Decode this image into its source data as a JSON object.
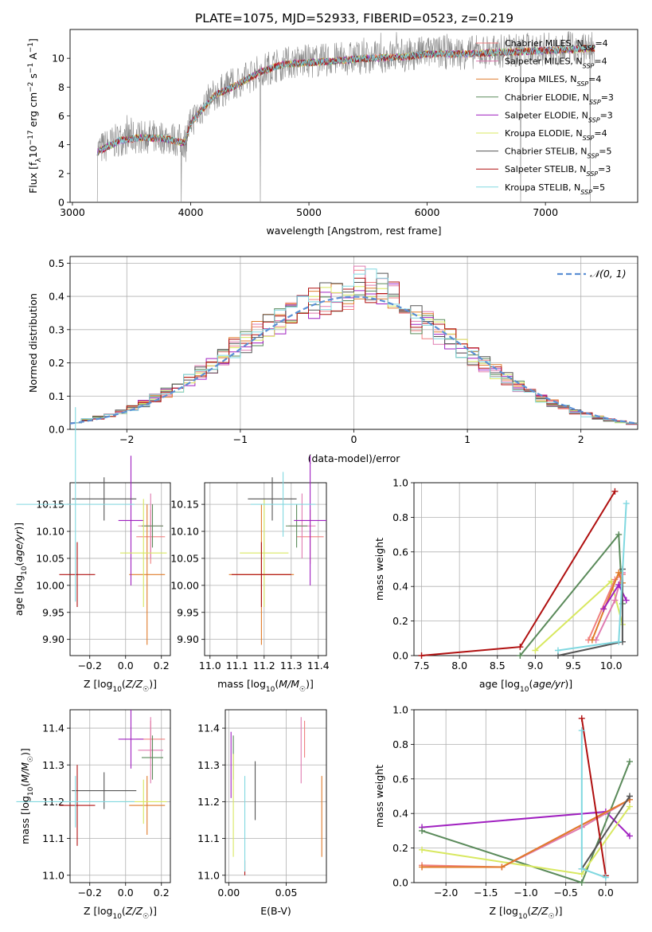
{
  "title": "PLATE=1075, MJD=52933, FIBERID=0523, z=0.219",
  "colors": {
    "chabrier_miles": "#f08080",
    "salpeter_miles": "#e07bb0",
    "kroupa_miles": "#e07b2a",
    "chabrier_elodie": "#5a8a5a",
    "salpeter_elodie": "#a020c0",
    "kroupa_elodie": "#d8e860",
    "chabrier_stelib": "#555555",
    "salpeter_stelib": "#b01010",
    "kroupa_stelib": "#80d8e0",
    "data": "#888888",
    "gaussian": "#5b8fd4"
  },
  "models": [
    {
      "key": "chabrier_miles",
      "label": "Chabrier MILES, N",
      "n": "=4"
    },
    {
      "key": "salpeter_miles",
      "label": "Salpeter MILES, N",
      "n": "=4"
    },
    {
      "key": "kroupa_miles",
      "label": "Kroupa MILES, N",
      "n": "=4"
    },
    {
      "key": "chabrier_elodie",
      "label": "Chabrier ELODIE, N",
      "n": "=3"
    },
    {
      "key": "salpeter_elodie",
      "label": "Salpeter ELODIE, N",
      "n": "=3"
    },
    {
      "key": "kroupa_elodie",
      "label": "Kroupa ELODIE, N",
      "n": "=4"
    },
    {
      "key": "chabrier_stelib",
      "label": "Chabrier STELIB, N",
      "n": "=5"
    },
    {
      "key": "salpeter_stelib",
      "label": "Salpeter STELIB, N",
      "n": "=3"
    },
    {
      "key": "kroupa_stelib",
      "label": "Kroupa STELIB, N",
      "n": "=5"
    }
  ],
  "chart_data": [
    {
      "type": "line",
      "panel": "spectrum",
      "xlabel": "wavelength [Angstrom, rest frame]",
      "ylabel": "Flux [f_λ 10^-17 erg cm^-2 s^-1 A^-1]",
      "xlim": [
        2980,
        7780
      ],
      "ylim": [
        0,
        12
      ],
      "xticks": [
        3000,
        4000,
        5000,
        6000,
        7000
      ],
      "yticks": [
        0,
        2,
        4,
        6,
        8,
        10
      ],
      "grid": false,
      "legend": "right",
      "data_x_range": [
        3210,
        7420
      ],
      "continuum": {
        "x": [
          3210,
          3400,
          3600,
          3800,
          3950,
          4000,
          4200,
          4400,
          4600,
          4800,
          5000,
          5200,
          5500,
          5800,
          6000,
          6300,
          6600,
          6900,
          7200,
          7420
        ],
        "y": [
          3.6,
          4.4,
          4.6,
          4.5,
          4.2,
          5.6,
          7.5,
          8.3,
          9.2,
          9.7,
          9.8,
          9.9,
          10.1,
          10.2,
          10.4,
          10.4,
          10.5,
          10.6,
          10.7,
          10.8
        ]
      }
    },
    {
      "type": "bar",
      "panel": "residual-histogram",
      "xlabel": "(data-model)/error",
      "ylabel": "Normed distribution",
      "xlim": [
        -2.5,
        2.5
      ],
      "ylim": [
        0,
        0.52
      ],
      "xticks": [
        -2,
        -1,
        0,
        1,
        2
      ],
      "yticks": [
        0.0,
        0.1,
        0.2,
        0.3,
        0.4,
        0.5
      ],
      "bin_width": 0.1,
      "grid": true,
      "legend": "top-right",
      "gaussian_label": "𝒩(0, 1)"
    },
    {
      "type": "scatter",
      "panel": "age-vs-Z",
      "xlabel": "Z [log10(Z/Z☉)]",
      "ylabel": "age [log10(age/yr)]",
      "xlim": [
        -0.31,
        0.25
      ],
      "ylim": [
        9.87,
        10.19
      ],
      "xticks": [
        -0.2,
        0.0,
        0.2
      ],
      "yticks": [
        9.9,
        9.95,
        10.0,
        10.05,
        10.1,
        10.15
      ],
      "grid": true,
      "points": [
        {
          "model": "chabrier_miles",
          "x": 0.14,
          "y": 10.09,
          "xerr": 0.08,
          "yerr": 0.05
        },
        {
          "model": "salpeter_miles",
          "x": 0.14,
          "y": 10.11,
          "xerr": 0.07,
          "yerr": 0.06
        },
        {
          "model": "kroupa_miles",
          "x": 0.12,
          "y": 10.02,
          "xerr": 0.1,
          "yerr": 0.13
        },
        {
          "model": "chabrier_elodie",
          "x": 0.15,
          "y": 10.11,
          "xerr": 0.06,
          "yerr": 0.04
        },
        {
          "model": "salpeter_elodie",
          "x": 0.03,
          "y": 10.12,
          "xerr": 0.07,
          "yerr": 0.12
        },
        {
          "model": "kroupa_elodie",
          "x": 0.1,
          "y": 10.06,
          "xerr": 0.13,
          "yerr": 0.1
        },
        {
          "model": "chabrier_stelib",
          "x": -0.12,
          "y": 10.16,
          "xerr": 0.18,
          "yerr": 0.04
        },
        {
          "model": "salpeter_stelib",
          "x": -0.27,
          "y": 10.02,
          "xerr": 0.1,
          "yerr": 0.06
        },
        {
          "model": "kroupa_stelib",
          "x": -0.28,
          "y": 10.15,
          "xerr": 0.33,
          "yerr": 0.18
        }
      ]
    },
    {
      "type": "scatter",
      "panel": "age-vs-mass",
      "xlabel": "mass [log10(M/M☉)]",
      "ylabel": "",
      "xlim": [
        10.98,
        11.43
      ],
      "ylim": [
        9.87,
        10.19
      ],
      "xticks": [
        11.0,
        11.1,
        11.2,
        11.3,
        11.4
      ],
      "yticks": [
        9.9,
        9.95,
        10.0,
        10.05,
        10.1,
        10.15
      ],
      "grid": true,
      "points": [
        {
          "model": "chabrier_miles",
          "x": 11.37,
          "y": 10.09,
          "xerr": 0.05,
          "yerr": 0.05
        },
        {
          "model": "salpeter_miles",
          "x": 11.34,
          "y": 10.11,
          "xerr": 0.05,
          "yerr": 0.06
        },
        {
          "model": "kroupa_miles",
          "x": 11.19,
          "y": 10.02,
          "xerr": 0.12,
          "yerr": 0.13
        },
        {
          "model": "chabrier_elodie",
          "x": 11.32,
          "y": 10.11,
          "xerr": 0.04,
          "yerr": 0.04
        },
        {
          "model": "salpeter_elodie",
          "x": 11.37,
          "y": 10.12,
          "xerr": 0.06,
          "yerr": 0.12
        },
        {
          "model": "kroupa_elodie",
          "x": 11.2,
          "y": 10.06,
          "xerr": 0.09,
          "yerr": 0.1
        },
        {
          "model": "chabrier_stelib",
          "x": 11.23,
          "y": 10.16,
          "xerr": 0.09,
          "yerr": 0.04
        },
        {
          "model": "salpeter_stelib",
          "x": 11.19,
          "y": 10.02,
          "xerr": 0.11,
          "yerr": 0.06
        },
        {
          "model": "kroupa_stelib",
          "x": 11.27,
          "y": 10.15,
          "xerr": 0.12,
          "yerr": 0.06
        }
      ]
    },
    {
      "type": "line",
      "panel": "mass-weight-vs-age",
      "xlabel": "age [log10(age/yr)]",
      "ylabel": "mass weight",
      "xlim": [
        7.4,
        10.35
      ],
      "ylim": [
        0,
        1
      ],
      "xticks": [
        7.5,
        8.0,
        8.5,
        9.0,
        9.5,
        10.0
      ],
      "yticks": [
        0.0,
        0.2,
        0.4,
        0.6,
        0.8,
        1.0
      ],
      "grid": true,
      "series": [
        {
          "model": "salpeter_stelib",
          "x": [
            7.5,
            8.8,
            10.05
          ],
          "y": [
            0.0,
            0.05,
            0.95
          ]
        },
        {
          "model": "chabrier_elodie",
          "x": [
            8.8,
            10.1,
            10.15
          ],
          "y": [
            0.0,
            0.7,
            0.3
          ]
        },
        {
          "model": "kroupa_elodie",
          "x": [
            9.0,
            10.0,
            10.15
          ],
          "y": [
            0.03,
            0.43,
            0.18
          ]
        },
        {
          "model": "chabrier_miles",
          "x": [
            9.7,
            10.05,
            10.15
          ],
          "y": [
            0.09,
            0.44,
            0.47
          ]
        },
        {
          "model": "salpeter_miles",
          "x": [
            9.8,
            10.05,
            10.15
          ],
          "y": [
            0.09,
            0.32,
            0.48
          ]
        },
        {
          "model": "kroupa_miles",
          "x": [
            9.75,
            10.1,
            10.15
          ],
          "y": [
            0.09,
            0.48,
            0.42
          ]
        },
        {
          "model": "salpeter_elodie",
          "x": [
            9.9,
            10.1,
            10.2
          ],
          "y": [
            0.27,
            0.41,
            0.32
          ]
        },
        {
          "model": "chabrier_stelib",
          "x": [
            9.3,
            10.15,
            10.15
          ],
          "y": [
            0.0,
            0.08,
            0.5
          ]
        },
        {
          "model": "kroupa_stelib",
          "x": [
            9.3,
            10.1,
            10.2
          ],
          "y": [
            0.03,
            0.08,
            0.88
          ]
        }
      ]
    },
    {
      "type": "scatter",
      "panel": "mass-vs-Z",
      "xlabel": "Z [log10(Z/Z☉)]",
      "ylabel": "mass [log10(M/M☉)]",
      "xlim": [
        -0.31,
        0.25
      ],
      "ylim": [
        10.98,
        11.45
      ],
      "xticks": [
        -0.2,
        0.0,
        0.2
      ],
      "yticks": [
        11.0,
        11.1,
        11.2,
        11.3,
        11.4
      ],
      "grid": true,
      "points": [
        {
          "model": "chabrier_miles",
          "x": 0.14,
          "y": 11.37,
          "xerr": 0.08,
          "yerr": 0.05
        },
        {
          "model": "salpeter_miles",
          "x": 0.14,
          "y": 11.34,
          "xerr": 0.07,
          "yerr": 0.09
        },
        {
          "model": "kroupa_miles",
          "x": 0.12,
          "y": 11.19,
          "xerr": 0.1,
          "yerr": 0.08
        },
        {
          "model": "chabrier_elodie",
          "x": 0.15,
          "y": 11.32,
          "xerr": 0.06,
          "yerr": 0.06
        },
        {
          "model": "salpeter_elodie",
          "x": 0.03,
          "y": 11.37,
          "xerr": 0.07,
          "yerr": 0.08
        },
        {
          "model": "kroupa_elodie",
          "x": 0.1,
          "y": 11.2,
          "xerr": 0.13,
          "yerr": 0.06
        },
        {
          "model": "chabrier_stelib",
          "x": -0.12,
          "y": 11.23,
          "xerr": 0.18,
          "yerr": 0.05
        },
        {
          "model": "salpeter_stelib",
          "x": -0.27,
          "y": 11.19,
          "xerr": 0.1,
          "yerr": 0.11
        },
        {
          "model": "kroupa_stelib",
          "x": -0.28,
          "y": 11.2,
          "xerr": 0.33,
          "yerr": 0.07
        }
      ]
    },
    {
      "type": "scatter",
      "panel": "mass-vs-EBV",
      "xlabel": "E(B-V)",
      "ylabel": "",
      "xlim": [
        -0.003,
        0.085
      ],
      "ylim": [
        10.98,
        11.45
      ],
      "xticks": [
        0.0,
        0.05
      ],
      "yticks": [
        11.0,
        11.1,
        11.2,
        11.3,
        11.4
      ],
      "grid": true,
      "points": [
        {
          "model": "chabrier_miles",
          "x": 0.066,
          "y": 11.37,
          "yerr": 0.05
        },
        {
          "model": "salpeter_miles",
          "x": 0.063,
          "y": 11.34,
          "yerr": 0.09
        },
        {
          "model": "kroupa_miles",
          "x": 0.081,
          "y": 11.16,
          "yerr": 0.11
        },
        {
          "model": "chabrier_elodie",
          "x": 0.004,
          "y": 11.32,
          "yerr": 0.06
        },
        {
          "model": "salpeter_elodie",
          "x": 0.002,
          "y": 11.3,
          "yerr": 0.09
        },
        {
          "model": "kroupa_elodie",
          "x": 0.004,
          "y": 11.19,
          "yerr": 0.14
        },
        {
          "model": "chabrier_stelib",
          "x": 0.023,
          "y": 11.23,
          "yerr": 0.08
        },
        {
          "model": "salpeter_stelib",
          "x": 0.014,
          "y": 11.02,
          "yerr": 0.02
        },
        {
          "model": "kroupa_stelib",
          "x": 0.014,
          "y": 11.14,
          "yerr": 0.13
        }
      ]
    },
    {
      "type": "line",
      "panel": "mass-weight-vs-Z",
      "xlabel": "Z [log10(Z/Z☉)]",
      "ylabel": "mass weight",
      "xlim": [
        -2.4,
        0.4
      ],
      "ylim": [
        0,
        1
      ],
      "xticks": [
        -2.0,
        -1.5,
        -1.0,
        -0.5,
        0.0
      ],
      "yticks": [
        0.0,
        0.2,
        0.4,
        0.6,
        0.8,
        1.0
      ],
      "grid": true,
      "series": [
        {
          "model": "salpeter_elodie",
          "x": [
            -2.3,
            0.0,
            0.3
          ],
          "y": [
            0.32,
            0.41,
            0.27
          ]
        },
        {
          "model": "chabrier_elodie",
          "x": [
            -2.3,
            -0.3,
            0.3
          ],
          "y": [
            0.3,
            0.0,
            0.7
          ]
        },
        {
          "model": "kroupa_elodie",
          "x": [
            -2.3,
            -0.3,
            0.3
          ],
          "y": [
            0.19,
            0.05,
            0.44
          ]
        },
        {
          "model": "chabrier_miles",
          "x": [
            -2.3,
            -1.3,
            0.3
          ],
          "y": [
            0.1,
            0.09,
            0.48
          ]
        },
        {
          "model": "salpeter_miles",
          "x": [
            -1.3,
            -0.3,
            0.3
          ],
          "y": [
            0.09,
            0.32,
            0.48
          ]
        },
        {
          "model": "kroupa_miles",
          "x": [
            -2.3,
            -1.3,
            0.3
          ],
          "y": [
            0.09,
            0.09,
            0.48
          ]
        },
        {
          "model": "salpeter_stelib",
          "x": [
            -0.3,
            0.0
          ],
          "y": [
            0.95,
            0.04
          ]
        },
        {
          "model": "chabrier_stelib",
          "x": [
            -0.3,
            0.3
          ],
          "y": [
            0.08,
            0.5
          ]
        },
        {
          "model": "kroupa_stelib",
          "x": [
            -0.3,
            -0.3,
            0.0
          ],
          "y": [
            0.88,
            0.08,
            0.03
          ]
        }
      ]
    }
  ]
}
